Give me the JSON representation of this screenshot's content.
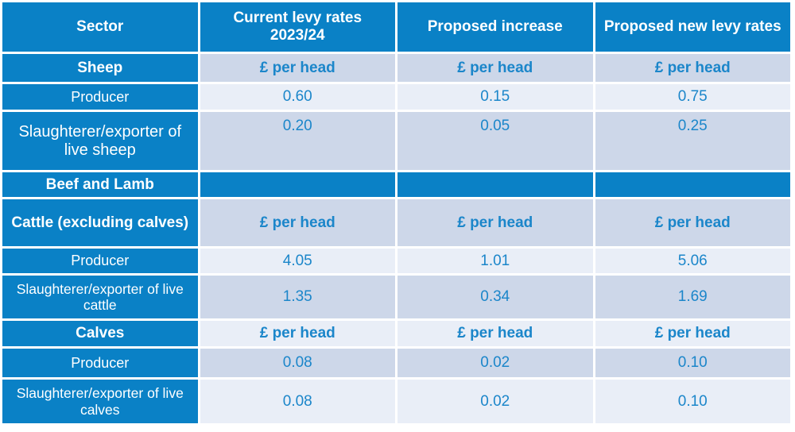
{
  "colors": {
    "header_bg": "#0a81c6",
    "band_dark": "#cdd7e9",
    "band_light": "#e9eef7",
    "value_text": "#1b86ca",
    "header_text": "#ffffff",
    "page_bg": "#ffffff"
  },
  "table": {
    "columns": [
      "Sector",
      "Current levy rates 2023/24",
      "Proposed increase",
      "Proposed new levy rates"
    ],
    "rows": [
      {
        "label": "Sheep",
        "values": [
          "£ per head",
          "£ per head",
          "£ per head"
        ]
      },
      {
        "label": "Producer",
        "values": [
          "0.60",
          "0.15",
          "0.75"
        ]
      },
      {
        "label": "Slaughterer/exporter of live sheep",
        "values": [
          "0.20",
          "0.05",
          "0.25"
        ]
      },
      {
        "label": "Beef and Lamb",
        "values": [
          "",
          "",
          ""
        ]
      },
      {
        "label": "Cattle (excluding calves)",
        "values": [
          "£ per head",
          "£ per head",
          "£ per head"
        ]
      },
      {
        "label": "Producer",
        "values": [
          "4.05",
          "1.01",
          "5.06"
        ]
      },
      {
        "label": "Slaughterer/exporter of live cattle",
        "values": [
          "1.35",
          "0.34",
          "1.69"
        ]
      },
      {
        "label": "Calves",
        "values": [
          "£ per head",
          "£ per head",
          "£ per head"
        ]
      },
      {
        "label": "Producer",
        "values": [
          "0.08",
          "0.02",
          "0.10"
        ]
      },
      {
        "label": "Slaughterer/exporter of live calves",
        "values": [
          "0.08",
          "0.02",
          "0.10"
        ]
      }
    ]
  }
}
